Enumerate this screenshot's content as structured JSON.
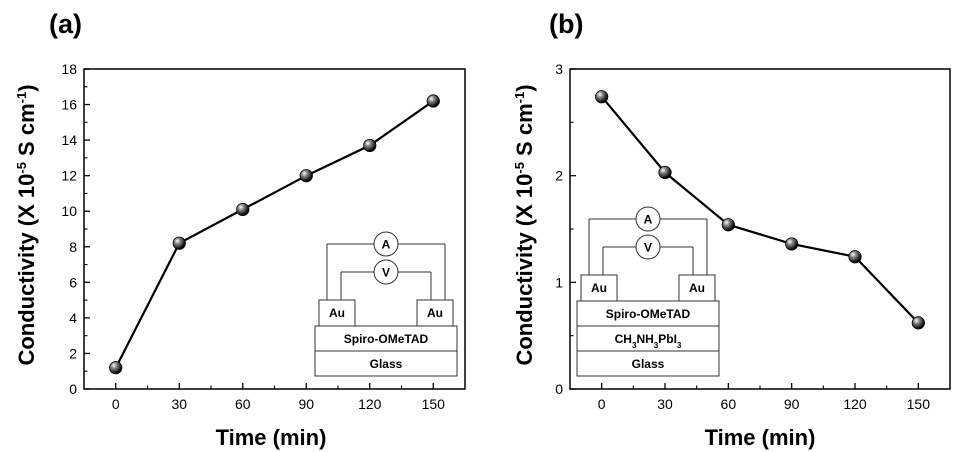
{
  "chart_data": [
    {
      "type": "line",
      "panel_label": "(a)",
      "xlabel": "Time (min)",
      "ylabel": "Conductivity (X 10",
      "ylabel_sup1": "-5",
      "ylabel_mid": " S cm",
      "ylabel_sup2": "-1",
      "ylabel_end": ")",
      "x": [
        0,
        30,
        60,
        90,
        120,
        150
      ],
      "y": [
        1.2,
        8.2,
        10.1,
        12.0,
        13.7,
        16.2
      ],
      "xlim": [
        -15,
        165
      ],
      "ylim": [
        0,
        18
      ],
      "xticks": [
        0,
        30,
        60,
        90,
        120,
        150
      ],
      "yticks": [
        0,
        2,
        4,
        6,
        8,
        10,
        12,
        14,
        16,
        18
      ],
      "grid": false,
      "series_color": "#000000",
      "inset": {
        "ammeter_label": "A",
        "voltmeter_label": "V",
        "electrode_left": "Au",
        "electrode_right": "Au",
        "layers": [
          "Spiro-OMeTAD",
          "Glass"
        ]
      }
    },
    {
      "type": "line",
      "panel_label": "(b)",
      "xlabel": "Time (min)",
      "ylabel": "Conductivity (X 10",
      "ylabel_sup1": "-5",
      "ylabel_mid": " S cm",
      "ylabel_sup2": "-1",
      "ylabel_end": ")",
      "x": [
        0,
        30,
        60,
        90,
        120,
        150
      ],
      "y": [
        2.74,
        2.03,
        1.54,
        1.36,
        1.24,
        0.62
      ],
      "xlim": [
        -15,
        165
      ],
      "ylim": [
        0,
        3
      ],
      "xticks": [
        0,
        30,
        60,
        90,
        120,
        150
      ],
      "yticks": [
        0,
        1,
        2,
        3
      ],
      "grid": false,
      "series_color": "#000000",
      "inset": {
        "ammeter_label": "A",
        "voltmeter_label": "V",
        "electrode_left": "Au",
        "electrode_right": "Au",
        "layers": [
          "Spiro-OMeTAD",
          "CH3NH3PbI3",
          "Glass"
        ]
      }
    }
  ]
}
